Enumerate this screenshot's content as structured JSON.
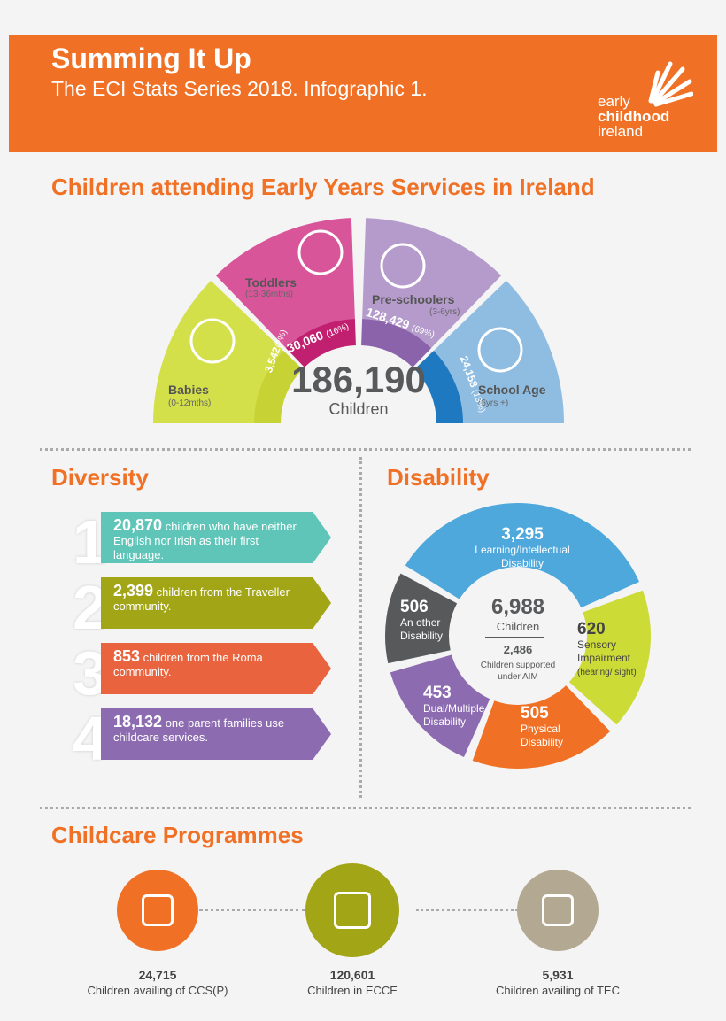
{
  "header": {
    "title": "Summing It Up",
    "subtitle": "The ECI Stats Series 2018. Infographic 1.",
    "logo_text": [
      "early",
      "childhood",
      "ireland"
    ]
  },
  "attendance": {
    "heading": "Children attending Early Years Services in Ireland",
    "total": "186,190",
    "total_label": "Children",
    "segments": [
      {
        "name": "Babies",
        "age": "(0-12mths)",
        "count": "3,542",
        "pct": "(2%)",
        "color": "#d4e04a",
        "band": "#c7d334"
      },
      {
        "name": "Toddlers",
        "age": "(13-36mths)",
        "count": "30,060",
        "pct": "(16%)",
        "color": "#d9559a",
        "band": "#c11f6f"
      },
      {
        "name": "Pre-schoolers",
        "age": "(3-6yrs)",
        "count": "128,429",
        "pct": "(69%)",
        "color": "#b59bcb",
        "band": "#8a63aa"
      },
      {
        "name": "School Age",
        "age": "(6yrs +)",
        "count": "24,158",
        "pct": "(13%)",
        "color": "#8fbde2",
        "band": "#1f79c0"
      }
    ]
  },
  "diversity": {
    "heading": "Diversity",
    "items": [
      {
        "num": "1",
        "value": "20,870",
        "text": "children who have neither English nor Irish as their first language.",
        "color": "#5ec5b8"
      },
      {
        "num": "2",
        "value": "2,399",
        "text": "children from the Traveller community.",
        "color": "#a1a516"
      },
      {
        "num": "3",
        "value": "853",
        "text": "children from the Roma community.",
        "color": "#e8633e"
      },
      {
        "num": "4",
        "value": "18,132",
        "text": "one parent families use childcare services.",
        "color": "#8c6bb1"
      }
    ]
  },
  "disability": {
    "heading": "Disability",
    "total": "6,988",
    "total_label": "Children",
    "aim": "2,486",
    "aim_label": "Children supported under AIM",
    "segments": [
      {
        "value": "3,295",
        "label": "Learning/Intellectual Disability",
        "color": "#4fa8dc"
      },
      {
        "value": "620",
        "label": "Sensory Impairment",
        "note": "(hearing/ sight)",
        "color": "#cddb37"
      },
      {
        "value": "505",
        "label": "Physical Disability",
        "color": "#f07125"
      },
      {
        "value": "453",
        "label": "Dual/Multiple Disability",
        "color": "#8c6bb1"
      },
      {
        "value": "506",
        "label": "An other Disability",
        "color": "#58595b"
      }
    ]
  },
  "programmes": {
    "heading": "Childcare Programmes",
    "items": [
      {
        "value": "24,715",
        "label": "Children availing of CCS(P)",
        "color": "#f07125",
        "icon": "children-playing-blocks-icon"
      },
      {
        "value": "120,601",
        "label": "Children in ECCE",
        "color": "#a1a516",
        "icon": "child-hopscotch-icon"
      },
      {
        "value": "5,931",
        "label": "Children availing of TEC",
        "color": "#b3a993",
        "icon": "children-sandpit-icon"
      }
    ]
  }
}
